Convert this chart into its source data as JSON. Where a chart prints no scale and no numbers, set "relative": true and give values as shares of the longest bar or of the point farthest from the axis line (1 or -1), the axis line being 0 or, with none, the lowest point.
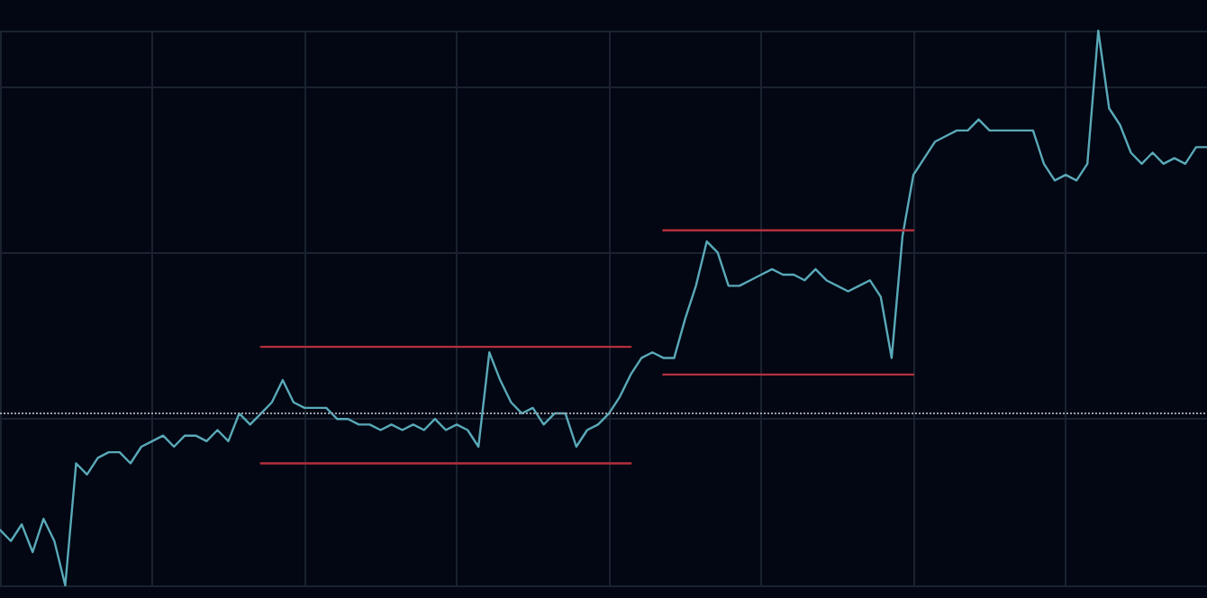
{
  "chart_data": {
    "type": "line",
    "relative": true,
    "grid": true,
    "categories": [
      null,
      null,
      null,
      null,
      null,
      null,
      null,
      null,
      null,
      null,
      null,
      null,
      null,
      null,
      null,
      null,
      null,
      null,
      null,
      null,
      null,
      null,
      null,
      null,
      null,
      null,
      null,
      null,
      null,
      null,
      null,
      null,
      null,
      null,
      null,
      null,
      null,
      null,
      null,
      null,
      null,
      null,
      null,
      null,
      null,
      null,
      null,
      null,
      null,
      null,
      null,
      null,
      null,
      null,
      null,
      null,
      null,
      null,
      null,
      null,
      null,
      null,
      null,
      null,
      null,
      null,
      null,
      null,
      null,
      null,
      null,
      null,
      null,
      null,
      null,
      null,
      null,
      null,
      null,
      null,
      null,
      null,
      null,
      null,
      null,
      null,
      null,
      null,
      null,
      null,
      null,
      null,
      null,
      null,
      null,
      null,
      null,
      null,
      null,
      null,
      null,
      null,
      null,
      null,
      null,
      null,
      null,
      null,
      null,
      null,
      null,
      null
    ],
    "series": [
      {
        "color": "#5aa9b8",
        "line_style": "solid",
        "values": [
          0.1,
          0.08,
          0.11,
          0.06,
          0.12,
          0.08,
          0,
          0.22,
          0.2,
          0.23,
          0.24,
          0.24,
          0.22,
          0.25,
          0.26,
          0.27,
          0.25,
          0.27,
          0.27,
          0.26,
          0.28,
          0.26,
          0.31,
          0.29,
          0.31,
          0.33,
          0.37,
          0.33,
          0.32,
          0.32,
          0.32,
          0.3,
          0.3,
          0.29,
          0.29,
          0.28,
          0.29,
          0.28,
          0.29,
          0.28,
          0.3,
          0.28,
          0.29,
          0.28,
          0.25,
          0.42,
          0.37,
          0.33,
          0.31,
          0.32,
          0.29,
          0.31,
          0.31,
          0.25,
          0.28,
          0.29,
          0.31,
          0.34,
          0.38,
          0.41,
          0.42,
          0.41,
          0.41,
          0.48,
          0.54,
          0.62,
          0.6,
          0.54,
          0.54,
          0.55,
          0.56,
          0.57,
          0.56,
          0.56,
          0.55,
          0.57,
          0.55,
          0.54,
          0.53,
          0.54,
          0.55,
          0.52,
          0.41,
          0.63,
          0.74,
          0.77,
          0.8,
          0.81,
          0.82,
          0.82,
          0.84,
          0.82,
          0.82,
          0.82,
          0.82,
          0.82,
          0.76,
          0.73,
          0.74,
          0.73,
          0.76,
          1,
          0.86,
          0.83,
          0.78,
          0.76,
          0.78,
          0.76,
          0.77,
          0.76,
          0.79,
          0.79
        ]
      },
      {
        "color": "#b3303c",
        "line_style": "solid",
        "values": [
          null,
          null,
          null,
          null,
          null,
          null,
          null,
          null,
          null,
          null,
          null,
          null,
          null,
          null,
          null,
          null,
          null,
          null,
          null,
          null,
          null,
          null,
          null,
          null,
          0.43,
          0.43,
          0.43,
          0.43,
          0.43,
          0.43,
          0.43,
          0.43,
          0.43,
          0.43,
          0.43,
          0.43,
          0.43,
          0.43,
          0.43,
          0.43,
          0.43,
          0.43,
          0.43,
          0.43,
          0.43,
          0.43,
          0.43,
          0.43,
          0.43,
          0.43,
          0.43,
          0.43,
          0.43,
          0.43,
          0.43,
          0.43,
          0.43,
          0.43,
          0.43,
          null,
          null,
          null,
          null,
          null,
          null,
          null,
          null,
          null,
          null,
          null,
          null,
          null,
          null,
          null,
          null,
          null,
          null,
          null,
          null,
          null,
          null,
          null,
          null,
          null,
          null,
          null,
          null,
          null,
          null,
          null,
          null,
          null,
          null,
          null,
          null,
          null,
          null,
          null,
          null,
          null,
          null,
          null,
          null,
          null,
          null,
          null,
          null,
          null,
          null,
          null,
          null,
          null
        ]
      },
      {
        "color": "#b3303c",
        "line_style": "solid",
        "values": [
          null,
          null,
          null,
          null,
          null,
          null,
          null,
          null,
          null,
          null,
          null,
          null,
          null,
          null,
          null,
          null,
          null,
          null,
          null,
          null,
          null,
          null,
          null,
          null,
          0.22,
          0.22,
          0.22,
          0.22,
          0.22,
          0.22,
          0.22,
          0.22,
          0.22,
          0.22,
          0.22,
          0.22,
          0.22,
          0.22,
          0.22,
          0.22,
          0.22,
          0.22,
          0.22,
          0.22,
          0.22,
          0.22,
          0.22,
          0.22,
          0.22,
          0.22,
          0.22,
          0.22,
          0.22,
          0.22,
          0.22,
          0.22,
          0.22,
          0.22,
          0.22,
          null,
          null,
          null,
          null,
          null,
          null,
          null,
          null,
          null,
          null,
          null,
          null,
          null,
          null,
          null,
          null,
          null,
          null,
          null,
          null,
          null,
          null,
          null,
          null,
          null,
          null,
          null,
          null,
          null,
          null,
          null,
          null,
          null,
          null,
          null,
          null,
          null,
          null,
          null,
          null,
          null,
          null,
          null,
          null,
          null,
          null,
          null,
          null,
          null,
          null,
          null,
          null,
          null
        ]
      },
      {
        "color": "#b3303c",
        "line_style": "solid",
        "values": [
          null,
          null,
          null,
          null,
          null,
          null,
          null,
          null,
          null,
          null,
          null,
          null,
          null,
          null,
          null,
          null,
          null,
          null,
          null,
          null,
          null,
          null,
          null,
          null,
          null,
          null,
          null,
          null,
          null,
          null,
          null,
          null,
          null,
          null,
          null,
          null,
          null,
          null,
          null,
          null,
          null,
          null,
          null,
          null,
          null,
          null,
          null,
          null,
          null,
          null,
          null,
          null,
          null,
          null,
          null,
          null,
          null,
          null,
          null,
          null,
          null,
          0.64,
          0.64,
          0.64,
          0.64,
          0.64,
          0.64,
          0.64,
          0.64,
          0.64,
          0.64,
          0.64,
          0.64,
          0.64,
          0.64,
          0.64,
          0.64,
          0.64,
          0.64,
          0.64,
          0.64,
          0.64,
          0.64,
          0.64,
          0.64,
          null,
          null,
          null,
          null,
          null,
          null,
          null,
          null,
          null,
          null,
          null,
          null,
          null,
          null,
          null,
          null,
          null,
          null,
          null,
          null,
          null,
          null,
          null,
          null,
          null,
          null,
          null
        ]
      },
      {
        "color": "#b3303c",
        "line_style": "solid",
        "values": [
          null,
          null,
          null,
          null,
          null,
          null,
          null,
          null,
          null,
          null,
          null,
          null,
          null,
          null,
          null,
          null,
          null,
          null,
          null,
          null,
          null,
          null,
          null,
          null,
          null,
          null,
          null,
          null,
          null,
          null,
          null,
          null,
          null,
          null,
          null,
          null,
          null,
          null,
          null,
          null,
          null,
          null,
          null,
          null,
          null,
          null,
          null,
          null,
          null,
          null,
          null,
          null,
          null,
          null,
          null,
          null,
          null,
          null,
          null,
          null,
          null,
          0.38,
          0.38,
          0.38,
          0.38,
          0.38,
          0.38,
          0.38,
          0.38,
          0.38,
          0.38,
          0.38,
          0.38,
          0.38,
          0.38,
          0.38,
          0.38,
          0.38,
          0.38,
          0.38,
          0.38,
          0.38,
          0.38,
          0.38,
          0.38,
          null,
          null,
          null,
          null,
          null,
          null,
          null,
          null,
          null,
          null,
          null,
          null,
          null,
          null,
          null,
          null,
          null,
          null,
          null,
          null,
          null,
          null,
          null,
          null,
          null,
          null,
          null
        ]
      }
    ],
    "ref_lines": [
      {
        "axis": "y",
        "value": 0.31,
        "color": "#9aa0a8",
        "line_style": "dotted"
      }
    ]
  }
}
